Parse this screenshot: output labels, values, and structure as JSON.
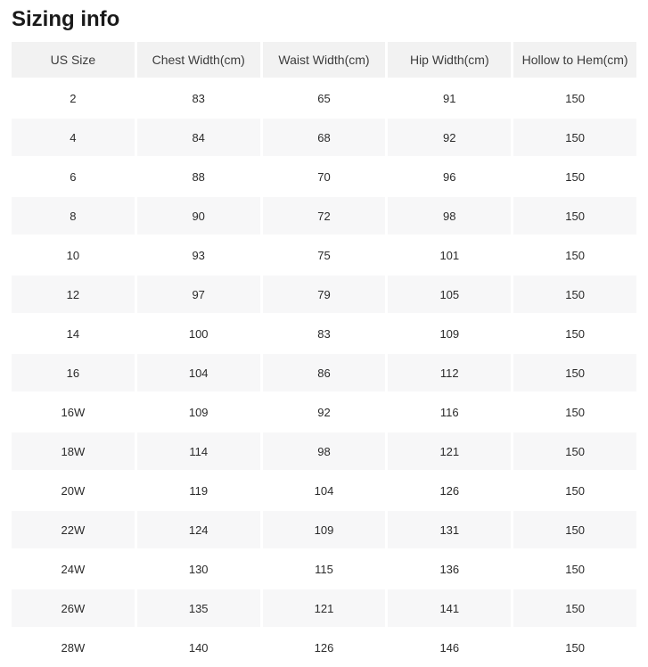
{
  "title": "Sizing info",
  "table": {
    "columns": [
      "US Size",
      "Chest Width(cm)",
      "Waist Width(cm)",
      "Hip Width(cm)",
      "Hollow to Hem(cm)"
    ],
    "rows": [
      [
        "2",
        "83",
        "65",
        "91",
        "150"
      ],
      [
        "4",
        "84",
        "68",
        "92",
        "150"
      ],
      [
        "6",
        "88",
        "70",
        "96",
        "150"
      ],
      [
        "8",
        "90",
        "72",
        "98",
        "150"
      ],
      [
        "10",
        "93",
        "75",
        "101",
        "150"
      ],
      [
        "12",
        "97",
        "79",
        "105",
        "150"
      ],
      [
        "14",
        "100",
        "83",
        "109",
        "150"
      ],
      [
        "16",
        "104",
        "86",
        "112",
        "150"
      ],
      [
        "16W",
        "109",
        "92",
        "116",
        "150"
      ],
      [
        "18W",
        "114",
        "98",
        "121",
        "150"
      ],
      [
        "20W",
        "119",
        "104",
        "126",
        "150"
      ],
      [
        "22W",
        "124",
        "109",
        "131",
        "150"
      ],
      [
        "24W",
        "130",
        "115",
        "136",
        "150"
      ],
      [
        "26W",
        "135",
        "121",
        "141",
        "150"
      ],
      [
        "28W",
        "140",
        "126",
        "146",
        "150"
      ]
    ]
  },
  "colors": {
    "header_bg": "#f2f2f2",
    "stripe_bg": "#f7f7f8",
    "title_text": "#1a1a1a",
    "cell_text": "#2b2b2b"
  }
}
